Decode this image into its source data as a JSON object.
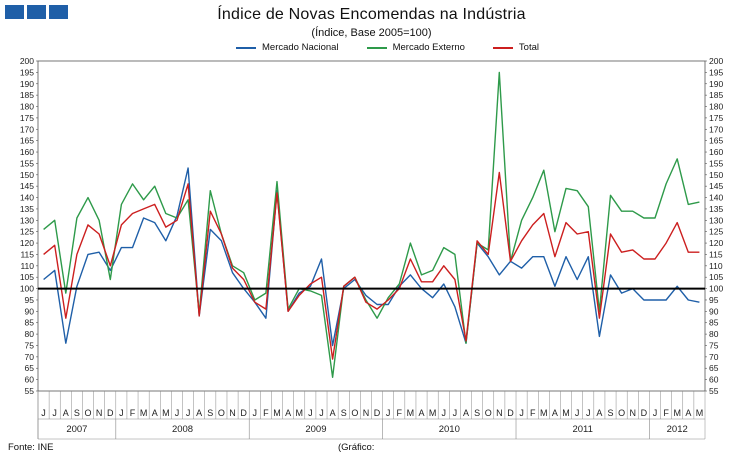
{
  "header": {
    "title": "Índice de Novas Encomendas na Indústria",
    "subtitle": "(Índice, Base 2005=100)"
  },
  "footer": {
    "source": "Fonte: INE",
    "note": "(Gráfico:"
  },
  "colors": {
    "nacional": "#1f5fa8",
    "externo": "#2e9a4a",
    "total": "#cc1f1f",
    "baseline": "#000000",
    "logo": "#1f5fa8"
  },
  "chart_data": {
    "type": "line",
    "title": "Índice de Novas Encomendas na Indústria",
    "subtitle": "(Índice, Base 2005=100)",
    "ylim": [
      55,
      200
    ],
    "ystep": 5,
    "baseline": 100,
    "legend_position": "top",
    "x": [
      "J",
      "J",
      "A",
      "S",
      "O",
      "N",
      "D",
      "J",
      "F",
      "M",
      "A",
      "M",
      "J",
      "J",
      "A",
      "S",
      "O",
      "N",
      "D",
      "J",
      "F",
      "M",
      "A",
      "M",
      "J",
      "J",
      "A",
      "S",
      "O",
      "N",
      "D",
      "J",
      "F",
      "M",
      "A",
      "M",
      "J",
      "J",
      "A",
      "S",
      "O",
      "N",
      "D",
      "J",
      "F",
      "M",
      "A",
      "M",
      "J",
      "J",
      "A",
      "S",
      "O",
      "N",
      "D",
      "J",
      "F",
      "M",
      "A",
      "M"
    ],
    "years": [
      {
        "label": "2007",
        "start": 0,
        "end": 6
      },
      {
        "label": "2008",
        "start": 7,
        "end": 18
      },
      {
        "label": "2009",
        "start": 19,
        "end": 30
      },
      {
        "label": "2010",
        "start": 31,
        "end": 42
      },
      {
        "label": "2011",
        "start": 43,
        "end": 54
      },
      {
        "label": "2012",
        "start": 55,
        "end": 59
      }
    ],
    "series": [
      {
        "name": "Mercado Nacional",
        "color_key": "nacional",
        "values": [
          104,
          108,
          76,
          101,
          115,
          116,
          108,
          118,
          118,
          131,
          129,
          121,
          132,
          153,
          88,
          126,
          121,
          107,
          100,
          94,
          87,
          143,
          90,
          98,
          101,
          113,
          75,
          100,
          104,
          97,
          93,
          93,
          101,
          106,
          100,
          96,
          102,
          92,
          76,
          120,
          114,
          106,
          112,
          109,
          114,
          114,
          101,
          114,
          104,
          114,
          79,
          106,
          98,
          100,
          95,
          95,
          95,
          101,
          95,
          94
        ]
      },
      {
        "name": "Mercado Externo",
        "color_key": "externo",
        "values": [
          126,
          130,
          98,
          131,
          140,
          130,
          104,
          137,
          146,
          139,
          145,
          133,
          131,
          139,
          89,
          143,
          124,
          110,
          107,
          95,
          98,
          147,
          91,
          100,
          99,
          97,
          61,
          101,
          105,
          95,
          87,
          96,
          102,
          120,
          106,
          108,
          118,
          115,
          76,
          120,
          117,
          195,
          112,
          130,
          140,
          152,
          125,
          144,
          143,
          136,
          90,
          141,
          134,
          134,
          131,
          131,
          146,
          157,
          137,
          138
        ]
      },
      {
        "name": "Total",
        "color_key": "total",
        "values": [
          115,
          119,
          87,
          115,
          128,
          124,
          110,
          128,
          133,
          135,
          137,
          127,
          130,
          146,
          88,
          134,
          124,
          109,
          104,
          94,
          91,
          142,
          90,
          97,
          102,
          105,
          69,
          101,
          105,
          94,
          91,
          95,
          100,
          113,
          103,
          103,
          110,
          104,
          77,
          121,
          115,
          151,
          112,
          121,
          128,
          133,
          114,
          129,
          124,
          125,
          87,
          124,
          116,
          117,
          113,
          113,
          120,
          129,
          116,
          116
        ]
      }
    ]
  }
}
